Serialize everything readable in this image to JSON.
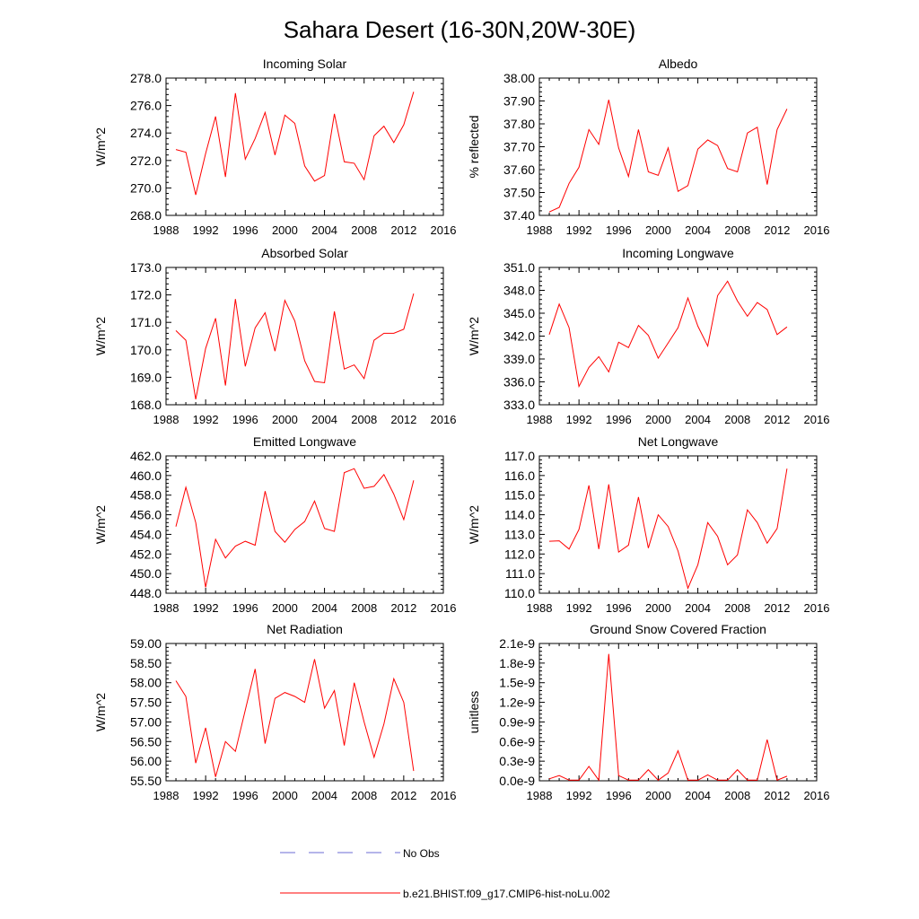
{
  "figure": {
    "title": "Sahara Desert (16-30N,20W-30E)",
    "legend": [
      {
        "label": "No Obs",
        "color": "#6b6bd6",
        "style": "dashed"
      },
      {
        "label": "b.e21.BHIST.f09_g17.CMIP6-hist-noLu.002",
        "color": "#ff0000",
        "style": "solid"
      }
    ]
  },
  "chart_data": [
    {
      "type": "line",
      "title": "Incoming Solar",
      "ylabel": "W/m^2",
      "xlabel": "",
      "xlim": [
        1988,
        2016
      ],
      "ylim": [
        268.0,
        278.0
      ],
      "xticks": [
        "1988",
        "1992",
        "1996",
        "2000",
        "2004",
        "2008",
        "2012",
        "2016"
      ],
      "yticks": [
        "268.0",
        "270.0",
        "272.0",
        "274.0",
        "276.0",
        "278.0"
      ],
      "grid": false,
      "series": [
        {
          "color": "#ff0000",
          "x": [
            1989,
            1990,
            1991,
            1992,
            1993,
            1994,
            1995,
            1996,
            1997,
            1998,
            1999,
            2000,
            2001,
            2002,
            2003,
            2004,
            2005,
            2006,
            2007,
            2008,
            2009,
            2010,
            2011,
            2012,
            2013
          ],
          "values": [
            272.8,
            272.6,
            269.5,
            272.5,
            275.2,
            270.8,
            276.9,
            272.1,
            273.6,
            275.5,
            272.4,
            275.3,
            274.7,
            271.6,
            270.5,
            270.9,
            275.4,
            271.9,
            271.8,
            270.6,
            273.8,
            274.5,
            273.3,
            274.6,
            277.0
          ]
        }
      ]
    },
    {
      "type": "line",
      "title": "Albedo",
      "ylabel": "% reflected",
      "xlabel": "",
      "xlim": [
        1988,
        2016
      ],
      "ylim": [
        37.4,
        38.0
      ],
      "xticks": [
        "1988",
        "1992",
        "1996",
        "2000",
        "2004",
        "2008",
        "2012",
        "2016"
      ],
      "yticks": [
        "37.40",
        "37.50",
        "37.60",
        "37.70",
        "37.80",
        "37.90",
        "38.00"
      ],
      "grid": false,
      "series": [
        {
          "color": "#ff0000",
          "x": [
            1989,
            1990,
            1991,
            1992,
            1993,
            1994,
            1995,
            1996,
            1997,
            1998,
            1999,
            2000,
            2001,
            2002,
            2003,
            2004,
            2005,
            2006,
            2007,
            2008,
            2009,
            2010,
            2011,
            2012,
            2013
          ],
          "values": [
            37.415,
            37.435,
            37.54,
            37.61,
            37.775,
            37.71,
            37.905,
            37.695,
            37.57,
            37.775,
            37.59,
            37.575,
            37.695,
            37.505,
            37.53,
            37.69,
            37.73,
            37.705,
            37.605,
            37.59,
            37.76,
            37.785,
            37.535,
            37.775,
            37.865
          ]
        }
      ]
    },
    {
      "type": "line",
      "title": "Absorbed Solar",
      "ylabel": "W/m^2",
      "xlabel": "",
      "xlim": [
        1988,
        2016
      ],
      "ylim": [
        168.0,
        173.0
      ],
      "xticks": [
        "1988",
        "1992",
        "1996",
        "2000",
        "2004",
        "2008",
        "2012",
        "2016"
      ],
      "yticks": [
        "168.0",
        "169.0",
        "170.0",
        "171.0",
        "172.0",
        "173.0"
      ],
      "grid": false,
      "series": [
        {
          "color": "#ff0000",
          "x": [
            1989,
            1990,
            1991,
            1992,
            1993,
            1994,
            1995,
            1996,
            1997,
            1998,
            1999,
            2000,
            2001,
            2002,
            2003,
            2004,
            2005,
            2006,
            2007,
            2008,
            2009,
            2010,
            2011,
            2012,
            2013
          ],
          "values": [
            170.7,
            170.35,
            168.2,
            170.05,
            171.15,
            168.7,
            171.85,
            169.4,
            170.8,
            171.35,
            169.95,
            171.8,
            171.05,
            169.6,
            168.85,
            168.8,
            171.4,
            169.3,
            169.45,
            168.95,
            170.35,
            170.6,
            170.6,
            170.75,
            172.05
          ]
        }
      ]
    },
    {
      "type": "line",
      "title": "Incoming Longwave",
      "ylabel": "W/m^2",
      "xlabel": "",
      "xlim": [
        1988,
        2016
      ],
      "ylim": [
        333.0,
        351.0
      ],
      "xticks": [
        "1988",
        "1992",
        "1996",
        "2000",
        "2004",
        "2008",
        "2012",
        "2016"
      ],
      "yticks": [
        "333.0",
        "336.0",
        "339.0",
        "342.0",
        "345.0",
        "348.0",
        "351.0"
      ],
      "grid": false,
      "series": [
        {
          "color": "#ff0000",
          "x": [
            1989,
            1990,
            1991,
            1992,
            1993,
            1994,
            1995,
            1996,
            1997,
            1998,
            1999,
            2000,
            2001,
            2002,
            2003,
            2004,
            2005,
            2006,
            2007,
            2008,
            2009,
            2010,
            2011,
            2012,
            2013
          ],
          "values": [
            342.2,
            346.2,
            343.1,
            335.4,
            337.9,
            339.3,
            337.3,
            341.2,
            340.5,
            343.4,
            342.1,
            339.1,
            341.1,
            343.1,
            347.0,
            343.3,
            340.7,
            347.3,
            349.2,
            346.6,
            344.6,
            346.4,
            345.5,
            342.2,
            343.2
          ]
        }
      ]
    },
    {
      "type": "line",
      "title": "Emitted Longwave",
      "ylabel": "W/m^2",
      "xlabel": "",
      "xlim": [
        1988,
        2016
      ],
      "ylim": [
        448.0,
        462.0
      ],
      "xticks": [
        "1988",
        "1992",
        "1996",
        "2000",
        "2004",
        "2008",
        "2012",
        "2016"
      ],
      "yticks": [
        "448.0",
        "450.0",
        "452.0",
        "454.0",
        "456.0",
        "458.0",
        "460.0",
        "462.0"
      ],
      "grid": false,
      "series": [
        {
          "color": "#ff0000",
          "x": [
            1989,
            1990,
            1991,
            1992,
            1993,
            1994,
            1995,
            1996,
            1997,
            1998,
            1999,
            2000,
            2001,
            2002,
            2003,
            2004,
            2005,
            2006,
            2007,
            2008,
            2009,
            2010,
            2011,
            2012,
            2013
          ],
          "values": [
            454.8,
            458.8,
            455.2,
            448.6,
            453.5,
            451.6,
            452.8,
            453.3,
            452.9,
            458.4,
            454.3,
            453.2,
            454.5,
            455.3,
            457.4,
            454.6,
            454.3,
            460.3,
            460.7,
            458.7,
            458.9,
            460.1,
            458.1,
            455.5,
            459.5
          ]
        }
      ]
    },
    {
      "type": "line",
      "title": "Net Longwave",
      "ylabel": "W/m^2",
      "xlabel": "",
      "xlim": [
        1988,
        2016
      ],
      "ylim": [
        110.0,
        117.0
      ],
      "xticks": [
        "1988",
        "1992",
        "1996",
        "2000",
        "2004",
        "2008",
        "2012",
        "2016"
      ],
      "yticks": [
        "110.0",
        "111.0",
        "112.0",
        "113.0",
        "114.0",
        "115.0",
        "116.0",
        "117.0"
      ],
      "grid": false,
      "series": [
        {
          "color": "#ff0000",
          "x": [
            1989,
            1990,
            1991,
            1992,
            1993,
            1994,
            1995,
            1996,
            1997,
            1998,
            1999,
            2000,
            2001,
            2002,
            2003,
            2004,
            2005,
            2006,
            2007,
            2008,
            2009,
            2010,
            2011,
            2012,
            2013
          ],
          "values": [
            112.65,
            112.67,
            112.25,
            113.25,
            115.5,
            112.25,
            115.55,
            112.1,
            112.45,
            114.9,
            112.3,
            114.0,
            113.4,
            112.15,
            110.25,
            111.45,
            113.6,
            112.9,
            111.45,
            111.95,
            114.25,
            113.6,
            112.55,
            113.3,
            116.35
          ]
        }
      ]
    },
    {
      "type": "line",
      "title": "Net Radiation",
      "ylabel": "W/m^2",
      "xlabel": "",
      "xlim": [
        1988,
        2016
      ],
      "ylim": [
        55.5,
        59.0
      ],
      "xticks": [
        "1988",
        "1992",
        "1996",
        "2000",
        "2004",
        "2008",
        "2012",
        "2016"
      ],
      "yticks": [
        "55.50",
        "56.00",
        "56.50",
        "57.00",
        "57.50",
        "58.00",
        "58.50",
        "59.00"
      ],
      "grid": false,
      "series": [
        {
          "color": "#ff0000",
          "x": [
            1989,
            1990,
            1991,
            1992,
            1993,
            1994,
            1995,
            1996,
            1997,
            1998,
            1999,
            2000,
            2001,
            2002,
            2003,
            2004,
            2005,
            2006,
            2007,
            2008,
            2009,
            2010,
            2011,
            2012,
            2013
          ],
          "values": [
            58.05,
            57.65,
            55.95,
            56.85,
            55.6,
            56.5,
            56.25,
            57.3,
            58.35,
            56.45,
            57.6,
            57.75,
            57.65,
            57.5,
            58.6,
            57.35,
            57.8,
            56.4,
            58.0,
            57.0,
            56.1,
            56.95,
            58.1,
            57.5,
            55.75
          ]
        }
      ]
    },
    {
      "type": "line",
      "title": "Ground Snow Covered Fraction",
      "ylabel": "unitless",
      "xlabel": "",
      "xlim": [
        1988,
        2016
      ],
      "ylim": [
        0,
        2.1e-09
      ],
      "xticks": [
        "1988",
        "1992",
        "1996",
        "2000",
        "2004",
        "2008",
        "2012",
        "2016"
      ],
      "yticks": [
        "0.0e-9",
        "0.3e-9",
        "0.6e-9",
        "0.9e-9",
        "1.2e-9",
        "1.5e-9",
        "1.8e-9",
        "2.1e-9"
      ],
      "grid": false,
      "series": [
        {
          "color": "#ff0000",
          "x": [
            1989,
            1990,
            1991,
            1992,
            1993,
            1994,
            1995,
            1996,
            1997,
            1998,
            1999,
            2000,
            2001,
            2002,
            2003,
            2004,
            2005,
            2006,
            2007,
            2008,
            2009,
            2010,
            2011,
            2012,
            2013
          ],
          "values": [
            3e-11,
            8e-11,
            1e-11,
            1e-11,
            2.2e-10,
            1e-11,
            1.94e-09,
            8e-11,
            1e-11,
            1e-11,
            1.7e-10,
            1e-11,
            1.2e-10,
            4.6e-10,
            1e-11,
            1e-11,
            9e-11,
            1e-11,
            1e-11,
            1.7e-10,
            1e-11,
            1e-11,
            6.3e-10,
            1e-11,
            7e-11
          ]
        }
      ]
    }
  ]
}
